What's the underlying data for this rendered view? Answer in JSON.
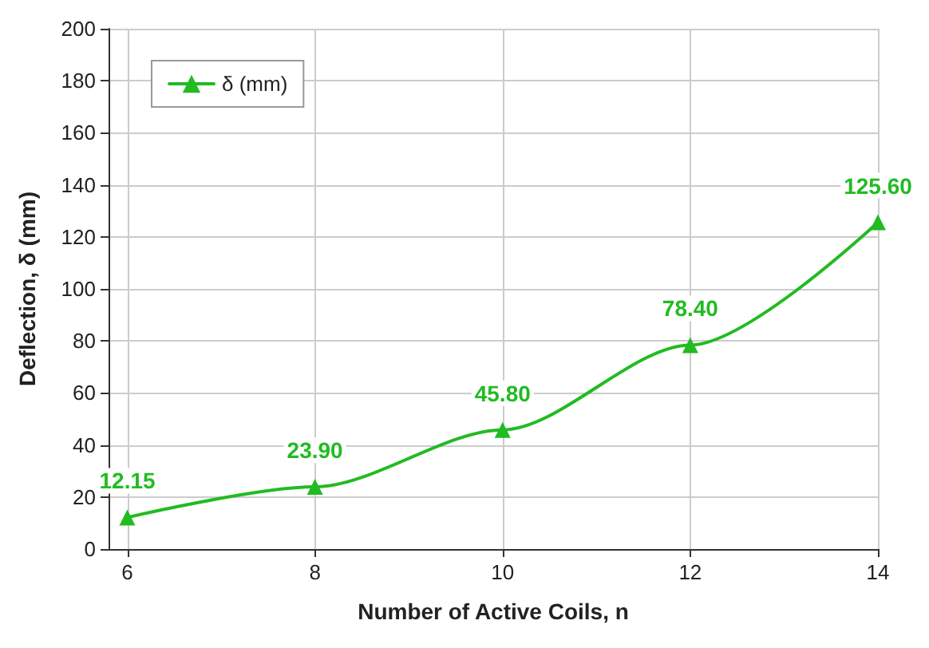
{
  "chart_data": {
    "type": "line",
    "xlabel": "Number of Active Coils, n",
    "ylabel": "Deflection, δ (mm)",
    "x": [
      6,
      8,
      10,
      12,
      14
    ],
    "series": [
      {
        "name": "δ (mm)",
        "color": "#22bb22",
        "values": [
          12.15,
          23.9,
          45.8,
          78.4,
          125.6
        ],
        "value_labels": [
          "12.15",
          "23.90",
          "45.80",
          "78.40",
          "125.60"
        ]
      }
    ],
    "xlim": [
      5.8,
      14
    ],
    "xticks": [
      6,
      8,
      10,
      12,
      14
    ],
    "ylim": [
      0,
      200
    ],
    "yticks": [
      0,
      20,
      40,
      60,
      80,
      100,
      120,
      140,
      160,
      180,
      200
    ],
    "grid": true,
    "legend": "top left",
    "marker": "triangle",
    "line_style": "solid"
  }
}
